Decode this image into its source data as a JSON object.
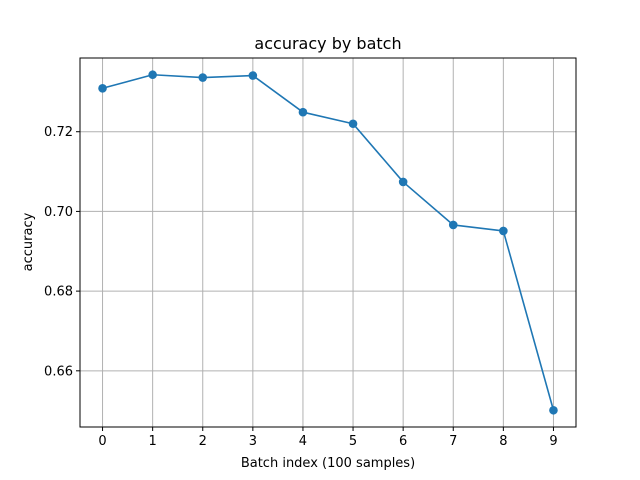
{
  "chart_data": {
    "type": "line",
    "title": "accuracy by batch",
    "xlabel": "Batch index (100 samples)",
    "ylabel": "accuracy",
    "x": [
      0,
      1,
      2,
      3,
      4,
      5,
      6,
      7,
      8,
      9
    ],
    "series": [
      {
        "values": [
          0.7309,
          0.7343,
          0.7336,
          0.7341,
          0.7249,
          0.722,
          0.7074,
          0.6966,
          0.6951,
          0.6501
        ],
        "color": "#1f77b4",
        "marker": "circle"
      }
    ],
    "xticks": [
      "0",
      "1",
      "2",
      "3",
      "4",
      "5",
      "6",
      "7",
      "8",
      "9"
    ],
    "yticks": [
      {
        "value": 0.66,
        "label": "0.66"
      },
      {
        "value": 0.68,
        "label": "0.68"
      },
      {
        "value": 0.7,
        "label": "0.70"
      },
      {
        "value": 0.72,
        "label": "0.72"
      }
    ],
    "xlim": [
      -0.45,
      9.45
    ],
    "ylim": [
      0.6459,
      0.7385
    ],
    "grid": true,
    "grid_color": "#b0b0b0"
  }
}
